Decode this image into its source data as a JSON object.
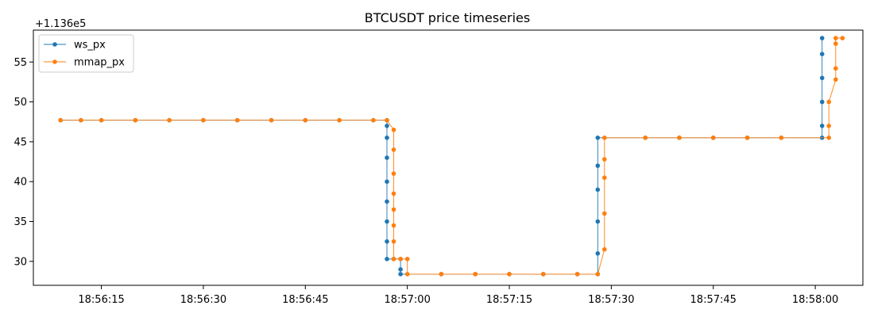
{
  "chart_data": {
    "type": "line",
    "title": "BTCUSDT price timeseries",
    "offset_label": "+1.136e5",
    "xlabel": "",
    "ylabel": "",
    "x_ticks": [
      "18:56:15",
      "18:56:30",
      "18:56:45",
      "18:57:00",
      "18:57:15",
      "18:57:30",
      "18:57:45",
      "18:58:00"
    ],
    "y_ticks": [
      30,
      35,
      40,
      45,
      50,
      55
    ],
    "xlim": [
      "18:56:05",
      "18:58:07"
    ],
    "ylim": [
      27,
      59
    ],
    "grid": false,
    "legend_position": "top-left",
    "series": [
      {
        "name": "ws_px",
        "color": "#1f77b4",
        "points": [
          [
            "18:56:09",
            47.7
          ],
          [
            "18:56:12",
            47.7
          ],
          [
            "18:56:15",
            47.7
          ],
          [
            "18:56:20",
            47.7
          ],
          [
            "18:56:25",
            47.7
          ],
          [
            "18:56:30",
            47.7
          ],
          [
            "18:56:35",
            47.7
          ],
          [
            "18:56:40",
            47.7
          ],
          [
            "18:56:45",
            47.7
          ],
          [
            "18:56:50",
            47.7
          ],
          [
            "18:56:55",
            47.7
          ],
          [
            "18:56:57",
            47.7
          ],
          [
            "18:56:57",
            47.0
          ],
          [
            "18:56:57",
            45.5
          ],
          [
            "18:56:57",
            43.0
          ],
          [
            "18:56:57",
            40.0
          ],
          [
            "18:56:57",
            37.5
          ],
          [
            "18:56:57",
            35.0
          ],
          [
            "18:56:57",
            32.5
          ],
          [
            "18:56:57",
            30.3
          ],
          [
            "18:56:58",
            30.3
          ],
          [
            "18:56:59",
            30.3
          ],
          [
            "18:56:59",
            29.0
          ],
          [
            "18:56:59",
            28.4
          ],
          [
            "18:57:05",
            28.4
          ],
          [
            "18:57:10",
            28.4
          ],
          [
            "18:57:15",
            28.4
          ],
          [
            "18:57:20",
            28.4
          ],
          [
            "18:57:25",
            28.4
          ],
          [
            "18:57:28",
            28.4
          ],
          [
            "18:57:28",
            31.0
          ],
          [
            "18:57:28",
            35.0
          ],
          [
            "18:57:28",
            39.0
          ],
          [
            "18:57:28",
            42.0
          ],
          [
            "18:57:28",
            45.5
          ],
          [
            "18:57:35",
            45.5
          ],
          [
            "18:57:40",
            45.5
          ],
          [
            "18:57:45",
            45.5
          ],
          [
            "18:57:50",
            45.5
          ],
          [
            "18:57:55",
            45.5
          ],
          [
            "18:58:01",
            45.5
          ],
          [
            "18:58:01",
            47.0
          ],
          [
            "18:58:01",
            50.0
          ],
          [
            "18:58:01",
            53.0
          ],
          [
            "18:58:01",
            56.0
          ],
          [
            "18:58:01",
            58.0
          ]
        ]
      },
      {
        "name": "mmap_px",
        "color": "#ff7f0e",
        "points": [
          [
            "18:56:09",
            47.7
          ],
          [
            "18:56:12",
            47.7
          ],
          [
            "18:56:15",
            47.7
          ],
          [
            "18:56:20",
            47.7
          ],
          [
            "18:56:25",
            47.7
          ],
          [
            "18:56:30",
            47.7
          ],
          [
            "18:56:35",
            47.7
          ],
          [
            "18:56:40",
            47.7
          ],
          [
            "18:56:45",
            47.7
          ],
          [
            "18:56:50",
            47.7
          ],
          [
            "18:56:55",
            47.7
          ],
          [
            "18:56:57",
            47.7
          ],
          [
            "18:56:58",
            46.5
          ],
          [
            "18:56:58",
            44.0
          ],
          [
            "18:56:58",
            41.0
          ],
          [
            "18:56:58",
            38.5
          ],
          [
            "18:56:58",
            36.5
          ],
          [
            "18:56:58",
            34.5
          ],
          [
            "18:56:58",
            32.5
          ],
          [
            "18:56:58",
            30.3
          ],
          [
            "18:56:59",
            30.3
          ],
          [
            "18:57:00",
            30.3
          ],
          [
            "18:57:00",
            28.4
          ],
          [
            "18:57:05",
            28.4
          ],
          [
            "18:57:10",
            28.4
          ],
          [
            "18:57:15",
            28.4
          ],
          [
            "18:57:20",
            28.4
          ],
          [
            "18:57:25",
            28.4
          ],
          [
            "18:57:28",
            28.4
          ],
          [
            "18:57:29",
            31.5
          ],
          [
            "18:57:29",
            36.0
          ],
          [
            "18:57:29",
            40.5
          ],
          [
            "18:57:29",
            42.8
          ],
          [
            "18:57:29",
            45.5
          ],
          [
            "18:57:35",
            45.5
          ],
          [
            "18:57:40",
            45.5
          ],
          [
            "18:57:45",
            45.5
          ],
          [
            "18:57:50",
            45.5
          ],
          [
            "18:57:55",
            45.5
          ],
          [
            "18:58:02",
            45.5
          ],
          [
            "18:58:02",
            47.0
          ],
          [
            "18:58:02",
            50.0
          ],
          [
            "18:58:03",
            52.8
          ],
          [
            "18:58:03",
            54.2
          ],
          [
            "18:58:03",
            57.3
          ],
          [
            "18:58:03",
            58.0
          ],
          [
            "18:58:04",
            58.0
          ]
        ]
      }
    ]
  }
}
